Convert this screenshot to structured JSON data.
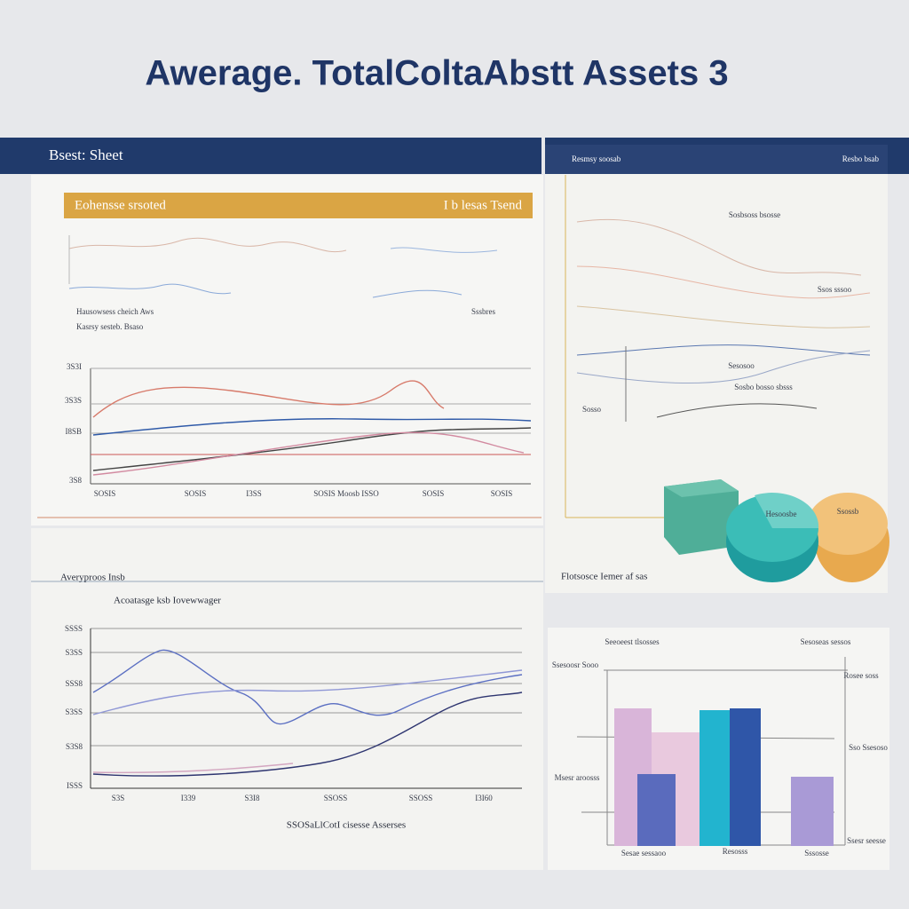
{
  "header": {
    "title": "Awerage. TotalColtaAbstt Assets 3"
  },
  "left_panel": {
    "title": "Bsest: Sheet",
    "banner_left": "Eohensse srsoted",
    "banner_right": "I b lesas Tsend",
    "notes": [
      "Hausowsess cheich Aws",
      "Kasrsy sesteb. Bsaso",
      "Sssbres"
    ],
    "chart": {
      "yticks": [
        "3S3I",
        "3S3S",
        "I8SB",
        "3S8"
      ],
      "xticks": [
        "SOSIS",
        "SOSIS",
        "I3SS",
        "SOSIS Moosb ISSO",
        "SOSIS",
        "SOSIS"
      ]
    }
  },
  "right_panel": {
    "header_left": "Resmsy soosab",
    "header_right": "Resbo bsab",
    "notes": [
      "Sosbsoss bsosse",
      "Ssos sssoo",
      "Sesosoo",
      "Sosbo bosso sbsss",
      "Sosso"
    ],
    "pie_labels": [
      "Hesoosbe",
      "Ssossb"
    ],
    "caption": "Flotsosce Iemer af sas"
  },
  "bottom_left": {
    "title": "Averyproos Insb",
    "chart": {
      "title": "Acoatasge ksb Iovewwager",
      "yticks": [
        "SSSS",
        "S3SS",
        "SSS8",
        "S3SS",
        "S3S8",
        "ISSS"
      ],
      "xticks": [
        "S3S",
        "I339",
        "S3I8",
        "SSOSS",
        "SSOSS",
        "I3I60"
      ],
      "x_label": "SSOSaLlCotI cisesse Asserses"
    }
  },
  "bottom_right": {
    "labels": [
      "Seeoeest tlsosses",
      "Sesoseas sessos",
      "Ssesoosr Sooo",
      "Rosee soss",
      "Msesr aroosss",
      "Sso Ssesoso",
      "Sesae sessaoo",
      "Resosss",
      "Sssosse",
      "Ssesr seesse"
    ]
  }
}
